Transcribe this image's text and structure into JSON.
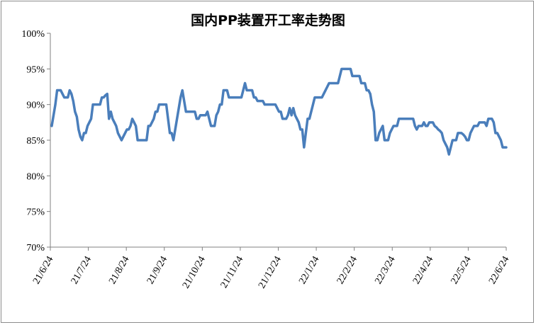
{
  "chart_data": {
    "type": "line",
    "title": "国内PP装置开工率走势图",
    "xlabel": "",
    "ylabel": "",
    "ylim": [
      70,
      100
    ],
    "ytick_labels": [
      "70%",
      "75%",
      "80%",
      "85%",
      "90%",
      "95%",
      "100%"
    ],
    "ytick_values": [
      70,
      75,
      80,
      85,
      90,
      95,
      100
    ],
    "xtick_labels": [
      "21/6/24",
      "21/7/24",
      "21/8/24",
      "21/9/24",
      "21/10/24",
      "21/11/24",
      "21/12/24",
      "22/1/24",
      "22/2/24",
      "22/3/24",
      "22/4/24",
      "22/5/24",
      "22/6/24"
    ],
    "grid": false,
    "legend": "none",
    "series_color": "#4a7ebb",
    "series": [
      {
        "values": [
          87,
          88.5,
          90,
          92,
          92,
          92,
          91.5,
          91,
          91,
          91,
          92,
          91.5,
          90.5,
          89,
          88.3,
          86.5,
          85.5,
          85,
          86,
          86,
          87,
          87.5,
          88,
          90,
          90,
          90,
          90,
          90,
          91,
          91,
          91.3,
          91.5,
          88,
          89,
          88,
          87.5,
          87,
          86,
          85.5,
          85,
          85.5,
          86,
          86.5,
          86.5,
          87,
          88,
          87.5,
          87,
          85,
          85,
          85,
          85,
          85,
          85,
          87,
          87,
          87.5,
          88,
          89,
          89,
          90,
          90,
          90,
          90,
          90,
          88,
          86,
          86,
          85,
          86.5,
          88,
          89.5,
          91,
          92,
          90.5,
          89,
          89,
          89,
          89,
          89,
          89,
          88,
          88,
          88.5,
          88.5,
          88.5,
          88.5,
          89,
          88,
          87,
          87,
          87,
          88.5,
          89,
          90,
          90,
          92,
          92,
          92,
          91,
          91,
          91,
          91,
          91,
          91,
          91,
          91,
          92,
          93,
          92,
          92,
          92,
          92,
          91,
          91,
          90.5,
          90.5,
          90.5,
          90.5,
          90,
          90,
          90,
          90,
          90,
          90,
          90,
          89.5,
          89,
          89,
          88,
          88,
          88,
          88.5,
          89.5,
          88.5,
          89.5,
          88.5,
          88,
          87.5,
          86.5,
          86.5,
          84,
          86,
          88,
          88,
          89,
          90,
          91,
          91,
          91,
          91,
          91,
          91.5,
          92,
          92.5,
          93,
          93,
          93,
          93,
          93,
          93,
          94,
          95,
          95,
          95,
          95,
          95,
          95,
          94,
          94,
          94,
          94,
          94,
          93,
          93,
          93,
          92,
          92,
          91.5,
          90,
          89,
          85,
          85,
          86,
          86.5,
          87,
          85,
          85,
          85,
          86,
          86.5,
          87,
          87,
          87,
          88,
          88,
          88,
          88,
          88,
          88,
          88,
          88,
          88,
          87,
          86.5,
          87,
          87,
          87,
          87.5,
          87,
          87,
          87.5,
          87.5,
          87.5,
          87,
          86.8,
          86.5,
          86.3,
          86,
          85,
          84.5,
          84,
          83,
          84,
          85,
          85,
          85,
          86,
          86,
          86,
          85.8,
          85.5,
          85,
          85,
          86,
          86.5,
          87,
          87,
          87,
          87.5,
          87.5,
          87.5,
          87.5,
          87,
          88,
          88,
          88,
          87.5,
          86,
          86,
          85.5,
          85,
          84,
          84,
          84
        ]
      }
    ]
  }
}
